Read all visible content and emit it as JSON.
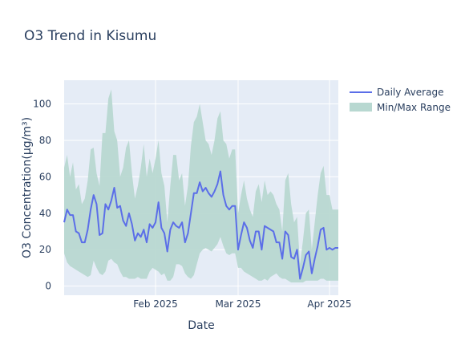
{
  "chart_data": {
    "type": "line",
    "title": "O3 Trend in Kisumu",
    "xlabel": "Date",
    "ylabel": "O3 Concentration(µg/m³)",
    "x_start": "2025-01-01",
    "x_end": "2025-04-04",
    "x_ticks": [
      {
        "label": "Feb 2025",
        "date": "2025-02-01"
      },
      {
        "label": "Mar 2025",
        "date": "2025-03-01"
      },
      {
        "label": "Apr 2025",
        "date": "2025-04-01"
      }
    ],
    "ylim": [
      -5,
      113
    ],
    "y_ticks": [
      0,
      20,
      40,
      60,
      80,
      100
    ],
    "grid": true,
    "legend_position": "top-right",
    "colors": {
      "line": "#5b6ee8",
      "band": "#b8d8d1",
      "plot_bg": "#e5ecf6",
      "grid": "#ffffff",
      "text": "#2a3f5f"
    },
    "series": [
      {
        "name": "Daily Average",
        "kind": "line",
        "x": [
          "2025-01-01",
          "2025-01-02",
          "2025-01-03",
          "2025-01-04",
          "2025-01-05",
          "2025-01-06",
          "2025-01-07",
          "2025-01-08",
          "2025-01-09",
          "2025-01-10",
          "2025-01-11",
          "2025-01-12",
          "2025-01-13",
          "2025-01-14",
          "2025-01-15",
          "2025-01-16",
          "2025-01-17",
          "2025-01-18",
          "2025-01-19",
          "2025-01-20",
          "2025-01-21",
          "2025-01-22",
          "2025-01-23",
          "2025-01-24",
          "2025-01-25",
          "2025-01-26",
          "2025-01-27",
          "2025-01-28",
          "2025-01-29",
          "2025-01-30",
          "2025-01-31",
          "2025-02-01",
          "2025-02-02",
          "2025-02-03",
          "2025-02-04",
          "2025-02-05",
          "2025-02-06",
          "2025-02-07",
          "2025-02-08",
          "2025-02-09",
          "2025-02-10",
          "2025-02-11",
          "2025-02-12",
          "2025-02-13",
          "2025-02-14",
          "2025-02-15",
          "2025-02-16",
          "2025-02-17",
          "2025-02-18",
          "2025-02-19",
          "2025-02-20",
          "2025-02-21",
          "2025-02-22",
          "2025-02-23",
          "2025-02-24",
          "2025-02-25",
          "2025-02-26",
          "2025-02-27",
          "2025-02-28",
          "2025-03-01",
          "2025-03-02",
          "2025-03-03",
          "2025-03-04",
          "2025-03-05",
          "2025-03-06",
          "2025-03-07",
          "2025-03-08",
          "2025-03-09",
          "2025-03-10",
          "2025-03-11",
          "2025-03-12",
          "2025-03-13",
          "2025-03-14",
          "2025-03-15",
          "2025-03-16",
          "2025-03-17",
          "2025-03-18",
          "2025-03-19",
          "2025-03-20",
          "2025-03-21",
          "2025-03-22",
          "2025-03-23",
          "2025-03-24",
          "2025-03-25",
          "2025-03-26",
          "2025-03-27",
          "2025-03-28",
          "2025-03-29",
          "2025-03-30",
          "2025-03-31",
          "2025-04-01",
          "2025-04-02",
          "2025-04-03",
          "2025-04-04"
        ],
        "values": [
          35,
          42,
          39,
          39,
          30,
          29,
          24,
          24,
          31,
          42,
          50,
          45,
          28,
          29,
          45,
          42,
          47,
          54,
          43,
          44,
          36,
          33,
          40,
          34,
          25,
          29,
          27,
          31,
          24,
          34,
          32,
          35,
          46,
          32,
          29,
          19,
          31,
          35,
          33,
          32,
          35,
          24,
          29,
          40,
          51,
          51,
          57,
          52,
          54,
          51,
          49,
          52,
          56,
          63,
          50,
          44,
          42,
          44,
          44,
          20,
          28,
          35,
          32,
          25,
          21,
          30,
          30,
          20,
          33,
          32,
          31,
          30,
          24,
          24,
          15,
          30,
          28,
          16,
          15,
          20,
          4,
          10,
          17,
          19,
          7,
          15,
          22,
          31,
          32,
          20,
          21,
          20,
          21,
          21
        ]
      },
      {
        "name": "Min/Max Range",
        "kind": "band",
        "x_ref": "Daily Average",
        "min": [
          18,
          13,
          11,
          10,
          9,
          8,
          7,
          6,
          5,
          6,
          14,
          10,
          7,
          6,
          8,
          14,
          15,
          13,
          12,
          8,
          5,
          5,
          4,
          4,
          4,
          5,
          4,
          4,
          4,
          8,
          10,
          9,
          8,
          6,
          7,
          3,
          3,
          5,
          12,
          12,
          11,
          7,
          5,
          4,
          6,
          12,
          18,
          20,
          21,
          20,
          19,
          21,
          23,
          27,
          22,
          18,
          17,
          18,
          18,
          10,
          10,
          8,
          7,
          6,
          5,
          4,
          3,
          3,
          4,
          3,
          5,
          6,
          7,
          5,
          4,
          4,
          3,
          2,
          2,
          2,
          2,
          2,
          3,
          3,
          3,
          3,
          3,
          4,
          4,
          3,
          3,
          3,
          3,
          3
        ],
        "max": [
          65,
          72,
          60,
          68,
          53,
          56,
          45,
          48,
          58,
          75,
          76,
          62,
          55,
          84,
          84,
          103,
          108,
          85,
          80,
          60,
          65,
          76,
          80,
          62,
          48,
          55,
          65,
          78,
          60,
          70,
          62,
          70,
          80,
          62,
          55,
          35,
          55,
          72,
          72,
          58,
          62,
          44,
          55,
          77,
          90,
          93,
          100,
          90,
          80,
          78,
          72,
          80,
          92,
          96,
          80,
          78,
          70,
          75,
          75,
          40,
          50,
          58,
          48,
          42,
          38,
          52,
          56,
          46,
          58,
          50,
          52,
          50,
          45,
          42,
          30,
          58,
          62,
          45,
          35,
          38,
          12,
          25,
          40,
          42,
          20,
          35,
          50,
          62,
          66,
          50,
          50,
          42,
          42,
          42
        ]
      }
    ]
  }
}
